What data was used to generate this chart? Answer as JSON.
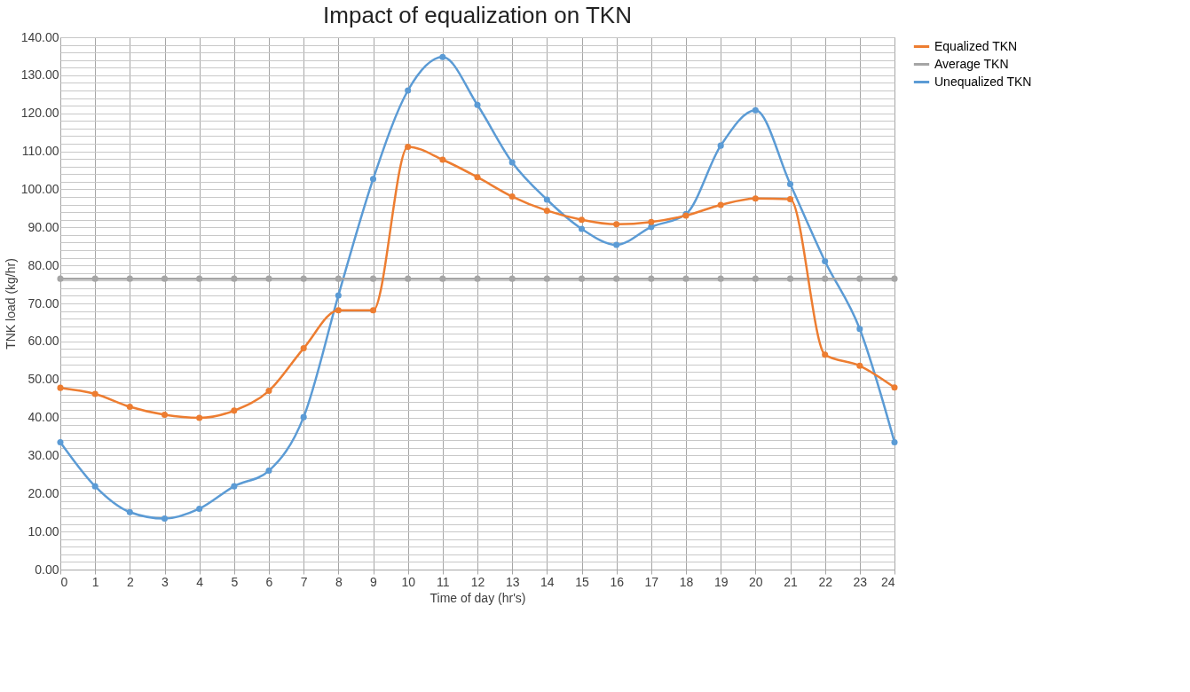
{
  "chart_data": {
    "type": "line",
    "title": "Impact of equalization on TKN",
    "xlabel": "Time of day (hr's)",
    "ylabel": "TNK load (kg/hr)",
    "x": [
      0,
      1,
      2,
      3,
      4,
      5,
      6,
      7,
      8,
      9,
      10,
      11,
      12,
      13,
      14,
      15,
      16,
      17,
      18,
      19,
      20,
      21,
      22,
      23,
      24
    ],
    "series": [
      {
        "name": "Equalized TKN",
        "color": "#ed7d31",
        "values": [
          47.8,
          46.2,
          42.8,
          40.7,
          39.9,
          41.8,
          47.0,
          58.2,
          68.2,
          68.2,
          111.2,
          107.8,
          103.2,
          98.1,
          94.4,
          92.0,
          90.8,
          91.4,
          93.1,
          95.9,
          97.6,
          97.4,
          56.5,
          53.6,
          47.9
        ]
      },
      {
        "name": "Average TKN",
        "color": "#a5a5a5",
        "values": [
          76.5,
          76.5,
          76.5,
          76.5,
          76.5,
          76.5,
          76.5,
          76.5,
          76.5,
          76.5,
          76.5,
          76.5,
          76.5,
          76.5,
          76.5,
          76.5,
          76.5,
          76.5,
          76.5,
          76.5,
          76.5,
          76.5,
          76.5,
          76.5,
          76.5
        ]
      },
      {
        "name": "Unequalized TKN",
        "color": "#5b9bd5",
        "values": [
          33.5,
          21.9,
          15.1,
          13.4,
          16.0,
          21.9,
          26.0,
          40.1,
          72.1,
          102.7,
          126.0,
          134.8,
          122.2,
          107.1,
          97.3,
          89.6,
          85.4,
          90.1,
          93.5,
          111.5,
          120.8,
          101.4,
          81.1,
          63.3,
          33.5
        ]
      }
    ],
    "xlim": [
      0,
      24
    ],
    "xticks": [
      0,
      1,
      2,
      3,
      4,
      5,
      6,
      7,
      8,
      9,
      10,
      11,
      12,
      13,
      14,
      15,
      16,
      17,
      18,
      19,
      20,
      21,
      22,
      23,
      24
    ],
    "ylim": [
      0,
      140
    ],
    "yticks": [
      {
        "value": 0,
        "label": "0.00"
      },
      {
        "value": 2,
        "label": null
      },
      {
        "value": 4,
        "label": null
      },
      {
        "value": 6,
        "label": null
      },
      {
        "value": 8,
        "label": null
      },
      {
        "value": 10,
        "label": "10.00"
      },
      {
        "value": 12,
        "label": null
      },
      {
        "value": 14,
        "label": null
      },
      {
        "value": 16,
        "label": null
      },
      {
        "value": 18,
        "label": null
      },
      {
        "value": 20,
        "label": "20.00"
      },
      {
        "value": 22,
        "label": null
      },
      {
        "value": 24,
        "label": null
      },
      {
        "value": 26,
        "label": null
      },
      {
        "value": 28,
        "label": null
      },
      {
        "value": 30,
        "label": "30.00"
      },
      {
        "value": 32,
        "label": null
      },
      {
        "value": 34,
        "label": null
      },
      {
        "value": 36,
        "label": null
      },
      {
        "value": 38,
        "label": null
      },
      {
        "value": 40,
        "label": "40.00"
      },
      {
        "value": 42,
        "label": null
      },
      {
        "value": 44,
        "label": null
      },
      {
        "value": 46,
        "label": null
      },
      {
        "value": 48,
        "label": null
      },
      {
        "value": 50,
        "label": "50.00"
      },
      {
        "value": 52,
        "label": null
      },
      {
        "value": 54,
        "label": null
      },
      {
        "value": 56,
        "label": null
      },
      {
        "value": 58,
        "label": null
      },
      {
        "value": 60,
        "label": "60.00"
      },
      {
        "value": 62,
        "label": null
      },
      {
        "value": 64,
        "label": null
      },
      {
        "value": 66,
        "label": null
      },
      {
        "value": 68,
        "label": null
      },
      {
        "value": 70,
        "label": "70.00"
      },
      {
        "value": 72,
        "label": null
      },
      {
        "value": 74,
        "label": null
      },
      {
        "value": 76,
        "label": null
      },
      {
        "value": 78,
        "label": null
      },
      {
        "value": 80,
        "label": "80.00"
      },
      {
        "value": 82,
        "label": null
      },
      {
        "value": 84,
        "label": null
      },
      {
        "value": 86,
        "label": null
      },
      {
        "value": 88,
        "label": null
      },
      {
        "value": 90,
        "label": "90.00"
      },
      {
        "value": 92,
        "label": null
      },
      {
        "value": 94,
        "label": null
      },
      {
        "value": 96,
        "label": null
      },
      {
        "value": 98,
        "label": null
      },
      {
        "value": 100,
        "label": "100.00"
      },
      {
        "value": 102,
        "label": null
      },
      {
        "value": 104,
        "label": null
      },
      {
        "value": 106,
        "label": null
      },
      {
        "value": 108,
        "label": null
      },
      {
        "value": 110,
        "label": "110.00"
      },
      {
        "value": 112,
        "label": null
      },
      {
        "value": 114,
        "label": null
      },
      {
        "value": 116,
        "label": null
      },
      {
        "value": 118,
        "label": null
      },
      {
        "value": 120,
        "label": "120.00"
      },
      {
        "value": 122,
        "label": null
      },
      {
        "value": 124,
        "label": null
      },
      {
        "value": 126,
        "label": null
      },
      {
        "value": 128,
        "label": null
      },
      {
        "value": 130,
        "label": "130.00"
      },
      {
        "value": 132,
        "label": null
      },
      {
        "value": 134,
        "label": null
      },
      {
        "value": 136,
        "label": null
      },
      {
        "value": 138,
        "label": null
      },
      {
        "value": 140,
        "label": "140.00"
      }
    ],
    "grid": true,
    "legend": "right",
    "marker": "circle",
    "line_style": "solid"
  }
}
